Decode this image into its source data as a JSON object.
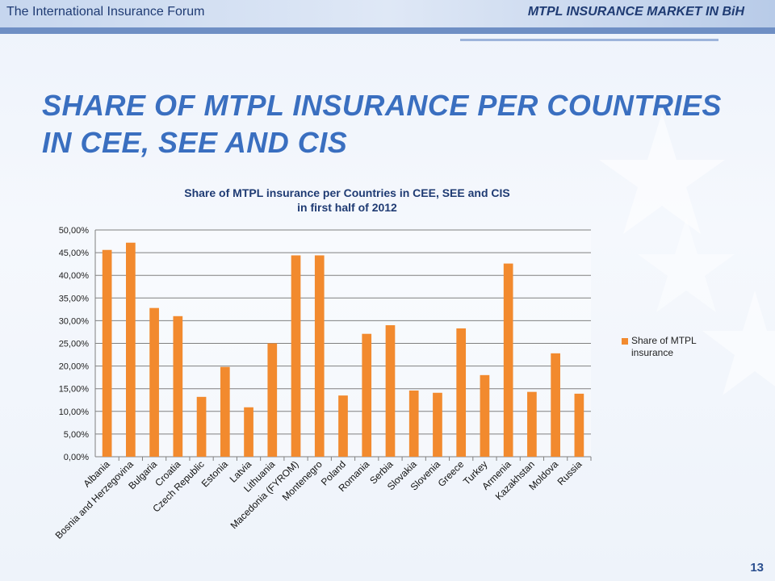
{
  "header": {
    "left_text": "The International Insurance Forum",
    "right_text": "MTPL INSURANCE MARKET IN BiH"
  },
  "slide": {
    "title_line1": "SHARE OF MTPL INSURANCE PER COUNTRIES",
    "title_line2": "IN CEE, SEE AND CIS",
    "page_number": "13"
  },
  "colors": {
    "bar": "#f28a2e",
    "title": "#3a6fc0",
    "header_text": "#1f3b73"
  },
  "chart_data": {
    "type": "bar",
    "title_line1": "Share of MTPL insurance per Countries in CEE, SEE and CIS",
    "title_line2": "in first half of 2012",
    "categories": [
      "Albania",
      "Bosnia and Herzegovina",
      "Bulgaria",
      "Croatia",
      "Czech Republic",
      "Estonia",
      "Latvia",
      "Lithuania",
      "Macedonia (FYROM)",
      "Montenegro",
      "Poland",
      "Romania",
      "Serbia",
      "Slovakia",
      "Slovenia",
      "Greece",
      "Turkey",
      "Armenia",
      "Kazakhstan",
      "Moldova",
      "Russia"
    ],
    "series": [
      {
        "name": "Share of MTPL insurance",
        "values": [
          45.6,
          47.2,
          32.8,
          31.0,
          13.2,
          19.8,
          10.9,
          25.0,
          44.4,
          44.4,
          13.5,
          27.1,
          29.0,
          14.6,
          14.1,
          28.3,
          18.0,
          42.6,
          14.3,
          22.8,
          13.9
        ]
      }
    ],
    "yticks": [
      "0,00%",
      "5,00%",
      "10,00%",
      "15,00%",
      "20,00%",
      "25,00%",
      "30,00%",
      "35,00%",
      "40,00%",
      "45,00%",
      "50,00%"
    ],
    "ylim": [
      0,
      50
    ],
    "grid": true,
    "legend_position": "right"
  }
}
